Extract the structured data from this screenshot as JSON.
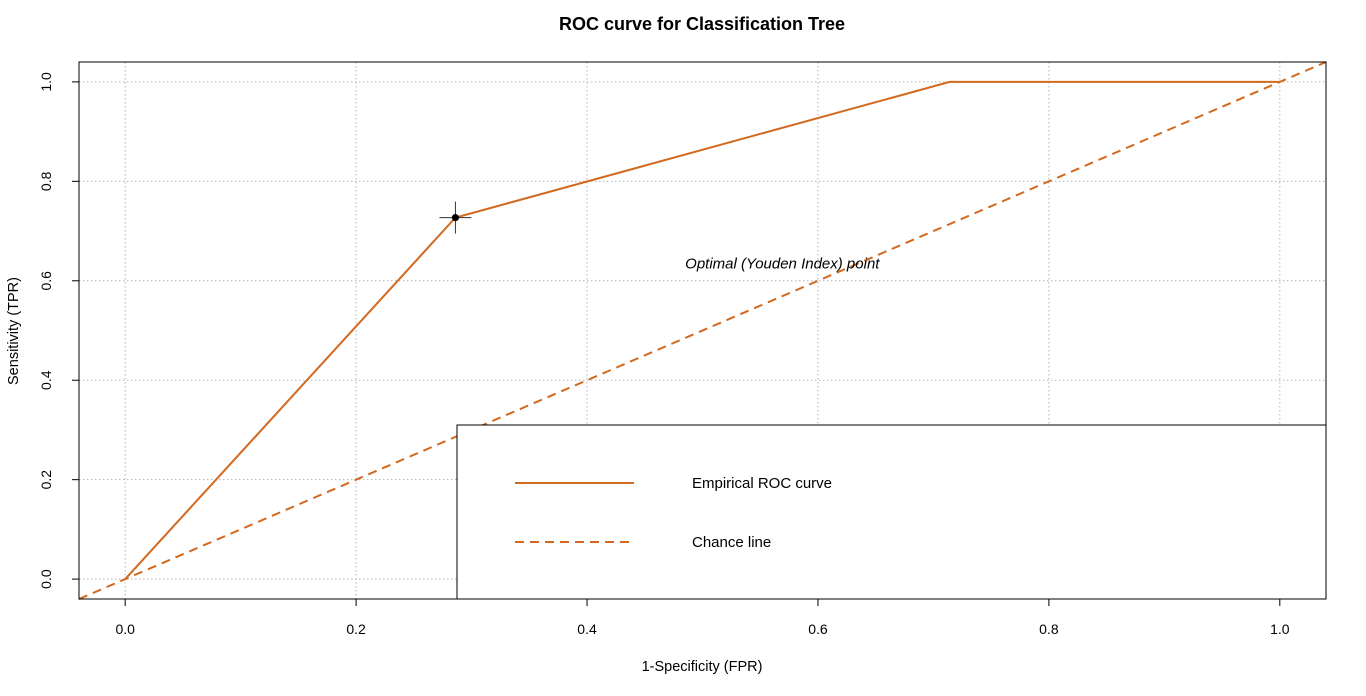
{
  "chart_data": {
    "type": "line",
    "title": "ROC curve for Classification Tree",
    "xlabel": "1-Specificity (FPR)",
    "ylabel": "Sensitivity (TPR)",
    "xlim": [
      -0.04,
      1.04
    ],
    "ylim": [
      -0.04,
      1.04
    ],
    "x_ticks": [
      0.0,
      0.2,
      0.4,
      0.6,
      0.8,
      1.0
    ],
    "y_ticks": [
      0.0,
      0.2,
      0.4,
      0.6,
      0.8,
      1.0
    ],
    "x_tick_labels": [
      "0.0",
      "0.2",
      "0.4",
      "0.6",
      "0.8",
      "1.0"
    ],
    "y_tick_labels": [
      "0.0",
      "0.2",
      "0.4",
      "0.6",
      "0.8",
      "1.0"
    ],
    "grid": true,
    "legend_position": "bottom-right",
    "series": [
      {
        "name": "Empirical ROC curve",
        "style": "solid",
        "color": "#D2691E",
        "x": [
          0.0,
          0.286,
          0.714,
          1.0
        ],
        "y": [
          0.0,
          0.727,
          1.0,
          1.0
        ]
      },
      {
        "name": "Chance line",
        "style": "dashed",
        "color": "#D2691E",
        "x": [
          -0.04,
          1.04
        ],
        "y": [
          -0.04,
          1.04
        ]
      }
    ],
    "optimal_point": {
      "x": 0.286,
      "y": 0.727,
      "color": "#000000"
    },
    "annotations": [
      {
        "text": "Optimal (Youden Index) point",
        "x": 0.485,
        "y": 0.625
      }
    ]
  }
}
